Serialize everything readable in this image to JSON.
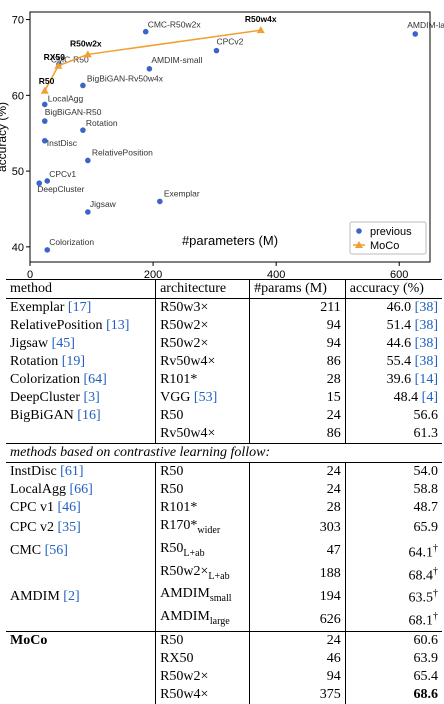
{
  "chart_data": {
    "type": "scatter",
    "xlabel": "#parameters (M)",
    "ylabel": "accuracy (%)",
    "xlim": [
      0,
      650
    ],
    "ylim": [
      38,
      71
    ],
    "xticks": [
      0,
      200,
      400,
      600
    ],
    "yticks": [
      40,
      50,
      60,
      70
    ],
    "legend": {
      "placement": "bottom-right",
      "entries": [
        "previous",
        "MoCo"
      ]
    },
    "colors": {
      "previous": "#3c64c8",
      "moco": "#f0a030",
      "axis": "#000000"
    },
    "series": [
      {
        "name": "previous",
        "marker": "circle",
        "points": [
          {
            "label": "CMC-R50w2x",
            "x": 188,
            "y": 68.4
          },
          {
            "label": "AMDIM-large",
            "x": 626,
            "y": 68.1
          },
          {
            "label": "CPCv2",
            "x": 303,
            "y": 65.9
          },
          {
            "label": "CMC-R50",
            "x": 47,
            "y": 64.1
          },
          {
            "label": "AMDIM-small",
            "x": 194,
            "y": 63.5
          },
          {
            "label": "BigBiGAN-Rv50w4x",
            "x": 86,
            "y": 61.3
          },
          {
            "label": "LocalAgg",
            "x": 24,
            "y": 58.8
          },
          {
            "label": "BigBiGAN-R50",
            "x": 24,
            "y": 56.6
          },
          {
            "label": "Rotation",
            "x": 86,
            "y": 55.4
          },
          {
            "label": "InstDisc",
            "x": 24,
            "y": 54.0
          },
          {
            "label": "RelativePosition",
            "x": 94,
            "y": 51.4
          },
          {
            "label": "CPCv1",
            "x": 28,
            "y": 48.7
          },
          {
            "label": "DeepCluster",
            "x": 15,
            "y": 48.4
          },
          {
            "label": "Exemplar",
            "x": 211,
            "y": 46.0
          },
          {
            "label": "Jigsaw",
            "x": 94,
            "y": 44.6
          },
          {
            "label": "Colorization",
            "x": 28,
            "y": 39.6
          }
        ]
      },
      {
        "name": "MoCo",
        "marker": "triangle",
        "points": [
          {
            "label": "R50",
            "x": 24,
            "y": 60.6
          },
          {
            "label": "RX50",
            "x": 46,
            "y": 63.9
          },
          {
            "label": "R50w2x",
            "x": 94,
            "y": 65.4
          },
          {
            "label": "R50w4x",
            "x": 375,
            "y": 68.6
          }
        ]
      }
    ]
  },
  "table": {
    "headers": [
      "method",
      "architecture",
      "#params (M)",
      "accuracy (%)"
    ],
    "section_note": "methods based on contrastive learning follow:",
    "rows_top": [
      {
        "method": "Exemplar",
        "mref": "[17]",
        "arch": "R50w3×",
        "params": "211",
        "acc": "46.0",
        "aref": "[38]"
      },
      {
        "method": "RelativePosition",
        "mref": "[13]",
        "arch": "R50w2×",
        "params": "94",
        "acc": "51.4",
        "aref": "[38]"
      },
      {
        "method": "Jigsaw",
        "mref": "[45]",
        "arch": "R50w2×",
        "params": "94",
        "acc": "44.6",
        "aref": "[38]"
      },
      {
        "method": "Rotation",
        "mref": "[19]",
        "arch": "Rv50w4×",
        "params": "86",
        "acc": "55.4",
        "aref": "[38]"
      },
      {
        "method": "Colorization",
        "mref": "[64]",
        "arch": "R101*",
        "params": "28",
        "acc": "39.6",
        "aref": "[14]"
      },
      {
        "method": "DeepCluster",
        "mref": "[3]",
        "arch": "VGG",
        "archref": "[53]",
        "params": "15",
        "acc": "48.4",
        "aref": "[4]"
      },
      {
        "method": "BigBiGAN",
        "mref": "[16]",
        "arch": "R50",
        "params": "24",
        "acc": "56.6",
        "aref": ""
      },
      {
        "method": "",
        "mref": "",
        "arch": "Rv50w4×",
        "params": "86",
        "acc": "61.3",
        "aref": ""
      }
    ],
    "rows_contrastive": [
      {
        "method": "InstDisc",
        "mref": "[61]",
        "arch": "R50",
        "sub": "",
        "params": "24",
        "acc": "54.0",
        "sup": ""
      },
      {
        "method": "LocalAgg",
        "mref": "[66]",
        "arch": "R50",
        "sub": "",
        "params": "24",
        "acc": "58.8",
        "sup": ""
      },
      {
        "method": "CPC v1",
        "mref": "[46]",
        "arch": "R101*",
        "sub": "",
        "params": "28",
        "acc": "48.7",
        "sup": ""
      },
      {
        "method": "CPC v2",
        "mref": "[35]",
        "arch": "R170*",
        "sub": "wider",
        "params": "303",
        "acc": "65.9",
        "sup": ""
      },
      {
        "method": "CMC",
        "mref": "[56]",
        "arch": "R50",
        "sub": "L+ab",
        "params": "47",
        "acc": "64.1",
        "sup": "†"
      },
      {
        "method": "",
        "mref": "",
        "arch": "R50w2×",
        "sub": "L+ab",
        "params": "188",
        "acc": "68.4",
        "sup": "†"
      },
      {
        "method": "AMDIM",
        "mref": "[2]",
        "arch": "AMDIM",
        "sub": "small",
        "params": "194",
        "acc": "63.5",
        "sup": "†"
      },
      {
        "method": "",
        "mref": "",
        "arch": "AMDIM",
        "sub": "large",
        "params": "626",
        "acc": "68.1",
        "sup": "†"
      }
    ],
    "rows_moco": [
      {
        "method": "MoCo",
        "arch": "R50",
        "params": "24",
        "acc": "60.6"
      },
      {
        "method": "",
        "arch": "RX50",
        "params": "46",
        "acc": "63.9"
      },
      {
        "method": "",
        "arch": "R50w2×",
        "params": "94",
        "acc": "65.4"
      },
      {
        "method": "",
        "arch": "R50w4×",
        "params": "375",
        "acc": "68.6"
      }
    ]
  }
}
